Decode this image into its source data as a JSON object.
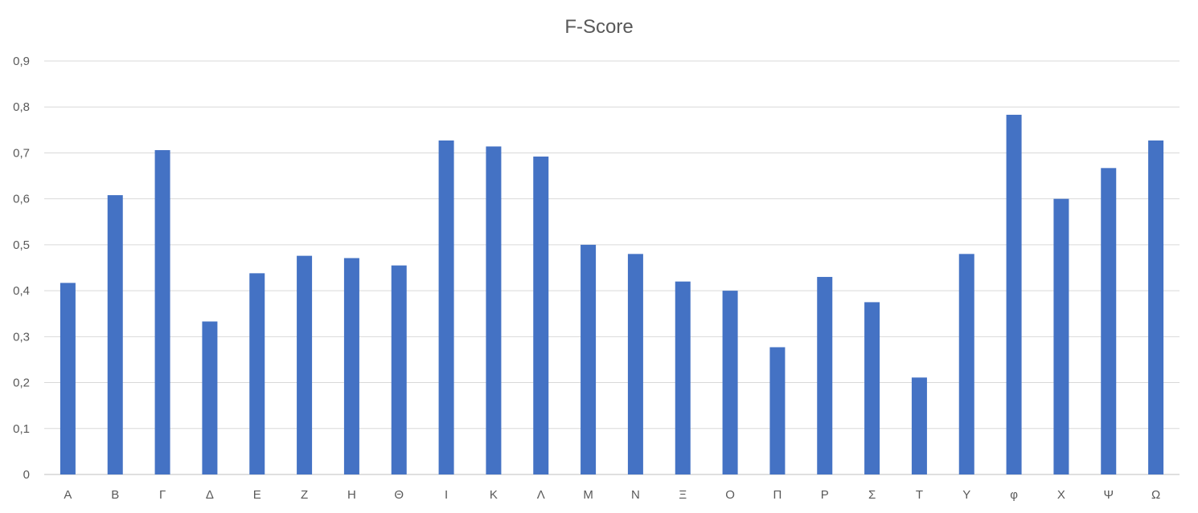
{
  "chart_data": {
    "type": "bar",
    "title": "F-Score",
    "xlabel": "",
    "ylabel": "",
    "categories": [
      "Α",
      "Β",
      "Γ",
      "Δ",
      "Ε",
      "Ζ",
      "Η",
      "Θ",
      "Ι",
      "Κ",
      "Λ",
      "Μ",
      "Ν",
      "Ξ",
      "Ο",
      "Π",
      "Ρ",
      "Σ",
      "Τ",
      "Υ",
      "φ",
      "Χ",
      "Ψ",
      "Ω"
    ],
    "values": [
      0.417,
      0.608,
      0.706,
      0.333,
      0.438,
      0.476,
      0.471,
      0.455,
      0.727,
      0.714,
      0.692,
      0.5,
      0.48,
      0.42,
      0.4,
      0.277,
      0.43,
      0.375,
      0.211,
      0.48,
      0.783,
      0.6,
      0.667,
      0.727
    ],
    "ylim": [
      0,
      0.9
    ],
    "yticks": [
      "0",
      "0,1",
      "0,2",
      "0,3",
      "0,4",
      "0,5",
      "0,6",
      "0,7",
      "0,8",
      "0,9"
    ],
    "grid": true,
    "legend": "none",
    "bar_color": "#4472C4",
    "grid_color": "#D9D9D9"
  }
}
